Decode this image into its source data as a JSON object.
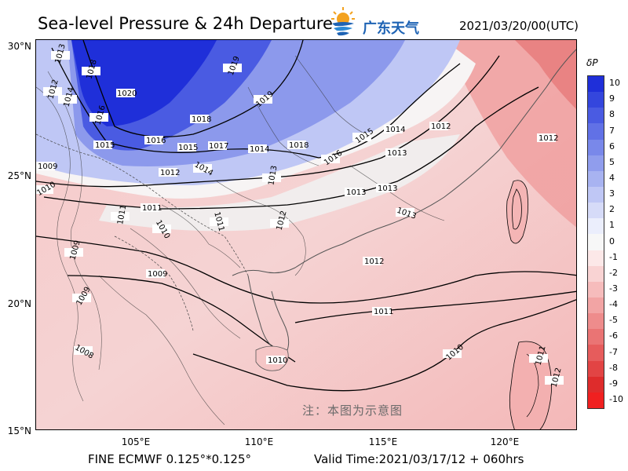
{
  "header": {
    "title": "Sea-level Pressure & 24h Departure",
    "datetime": "2021/03/20/00(UTC)",
    "logo_text": "广东天气"
  },
  "footer": {
    "model": "FINE ECMWF 0.125°*0.125°",
    "valid_time": "Valid Time:2021/03/17/12 + 060hrs"
  },
  "watermark": "注：本图为示意图",
  "axes": {
    "lat_labels": [
      "30°N",
      "25°N",
      "20°N",
      "15°N"
    ],
    "lon_labels": [
      "105°E",
      "110°E",
      "115°E",
      "120°E"
    ]
  },
  "colorbar": {
    "title": "δP",
    "levels": [
      "10",
      "9",
      "8",
      "7",
      "6",
      "5",
      "4",
      "3",
      "2",
      "1",
      "0",
      "-1",
      "-2",
      "-3",
      "-4",
      "-5",
      "-6",
      "-7",
      "-8",
      "-9",
      "-10"
    ],
    "colors": [
      "#1f2fd9",
      "#3446dd",
      "#4a5be2",
      "#6171e6",
      "#7988ea",
      "#909ded",
      "#a8b3f1",
      "#bfc7f5",
      "#d6dbf8",
      "#ebeefc",
      "#f7f7f7",
      "#fce8e8",
      "#f9d3d3",
      "#f6bcbc",
      "#f2a4a4",
      "#ee8c8c",
      "#ea7474",
      "#e65c5c",
      "#e24444",
      "#de2c2c",
      "#f02020"
    ]
  },
  "contour_labels": [
    "1013",
    "1012",
    "1014",
    "1018",
    "1016",
    "1020",
    "1019",
    "1018",
    "1019",
    "1015",
    "1016",
    "1015",
    "1017",
    "1014",
    "1018",
    "1016",
    "1015",
    "1014",
    "1013",
    "1012",
    "1009",
    "1010",
    "1012",
    "1014",
    "1013",
    "1011",
    "1011",
    "1013",
    "1013",
    "1013",
    "1012",
    "1010",
    "1009",
    "1011",
    "1012",
    "1009",
    "1009",
    "1008",
    "1011",
    "1010",
    "1010",
    "1011",
    "1012",
    "1012"
  ]
}
